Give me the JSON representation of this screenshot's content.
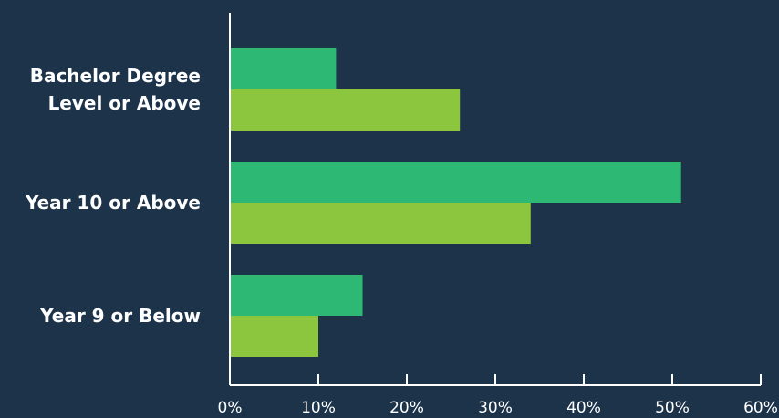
{
  "chart_data": {
    "type": "bar",
    "orientation": "horizontal",
    "categories": [
      [
        "Bachelor Degree",
        "Level or Above"
      ],
      [
        "Year 10 or Above"
      ],
      [
        "Year 9 or Below"
      ]
    ],
    "series": [
      {
        "values": [
          12,
          51,
          15
        ],
        "color": "#2db874"
      },
      {
        "values": [
          26,
          34,
          10
        ],
        "color": "#8cc63f"
      }
    ],
    "xlim": [
      0,
      60
    ],
    "xticks": [
      0,
      10,
      20,
      30,
      40,
      50,
      60
    ],
    "xtick_labels": [
      "0%",
      "10%",
      "20%",
      "30%",
      "40%",
      "50%",
      "60%"
    ],
    "title": "",
    "xlabel": "",
    "ylabel": "",
    "grid": false,
    "legend": "none",
    "background_color": "#1c334a",
    "axis_color": "#ffffff"
  }
}
